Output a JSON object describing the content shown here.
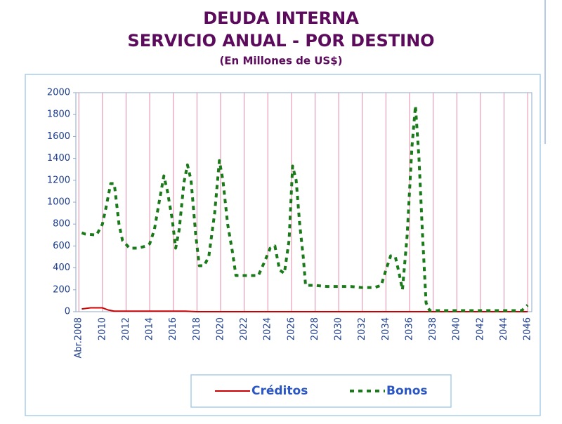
{
  "chart_data": {
    "type": "line",
    "title": "DEUDA INTERNA",
    "subtitle": "SERVICIO ANUAL - POR DESTINO",
    "unit_note": "(En Millones de US$)",
    "xlim": [
      2007.75,
      2046.35
    ],
    "xticks": [
      {
        "value": 2008,
        "label": "Abr.2008"
      },
      2010,
      2012,
      2014,
      2016,
      2018,
      2020,
      2022,
      2024,
      2026,
      2028,
      2030,
      2032,
      2034,
      2036,
      2038,
      2040,
      2042,
      2044,
      2046
    ],
    "ylim": [
      0,
      2000
    ],
    "yticks": [
      0,
      200,
      400,
      600,
      800,
      1000,
      1200,
      1400,
      1600,
      1800,
      2000
    ],
    "grid": true,
    "legend": "bottom",
    "series": [
      {
        "name": "Créditos",
        "color": "#cc0000",
        "style": "solid",
        "x": [
          2008.25,
          2009,
          2010,
          2010.5,
          2011,
          2017,
          2018,
          2046
        ],
        "values": [
          25,
          35,
          35,
          15,
          5,
          5,
          0,
          0
        ]
      },
      {
        "name": "Bonos",
        "color": "#1a7a1a",
        "style": "dashed",
        "x": [
          2008.25,
          2008.5,
          2009.5,
          2010,
          2010.3,
          2010.7,
          2011,
          2011.4,
          2011.7,
          2012.3,
          2013,
          2013.7,
          2014,
          2014.4,
          2014.8,
          2015.2,
          2015.5,
          2015.9,
          2016.2,
          2016.5,
          2016.9,
          2017.2,
          2017.5,
          2017.9,
          2018.2,
          2018.6,
          2019,
          2019.5,
          2019.9,
          2020.2,
          2020.6,
          2021,
          2021.3,
          2022,
          2022.7,
          2023.2,
          2023.7,
          2024.2,
          2024.6,
          2025,
          2025.4,
          2025.8,
          2026.1,
          2026.4,
          2026.7,
          2027,
          2027.2,
          2028,
          2029,
          2030,
          2031,
          2032,
          2033,
          2033.6,
          2034,
          2034.4,
          2034.8,
          2035.1,
          2035.4,
          2035.8,
          2036.2,
          2036.5,
          2036.8,
          2037.1,
          2037.4,
          2037.7,
          2040,
          2042,
          2044,
          2045.5,
          2046
        ],
        "values": [
          720,
          710,
          700,
          800,
          950,
          1170,
          1170,
          800,
          650,
          580,
          580,
          600,
          620,
          750,
          1000,
          1240,
          1100,
          850,
          580,
          750,
          1180,
          1340,
          1200,
          700,
          420,
          420,
          500,
          900,
          1380,
          1200,
          800,
          550,
          330,
          330,
          330,
          330,
          450,
          580,
          600,
          380,
          350,
          650,
          1330,
          1200,
          800,
          500,
          240,
          240,
          230,
          230,
          230,
          220,
          220,
          240,
          380,
          510,
          500,
          360,
          200,
          700,
          1500,
          1880,
          1400,
          700,
          80,
          10,
          10,
          10,
          10,
          10,
          60
        ]
      }
    ]
  }
}
